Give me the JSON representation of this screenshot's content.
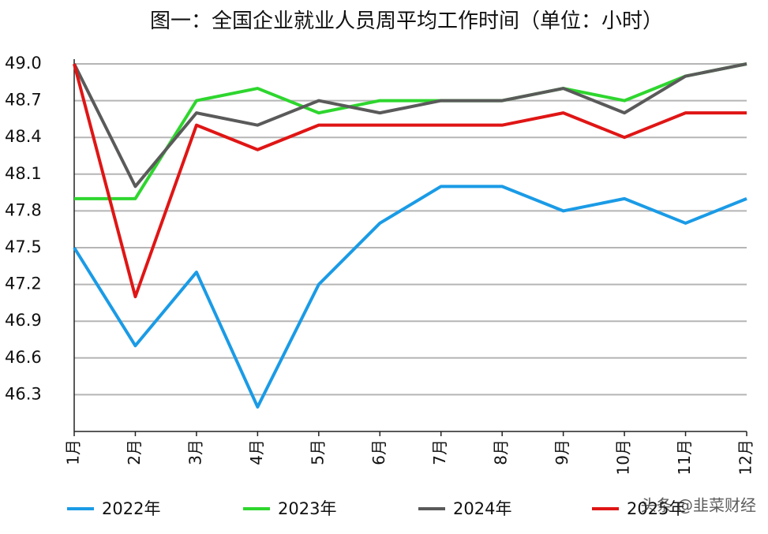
{
  "chart_data": {
    "type": "line",
    "title": "图一：全国企业就业人员周平均工作时间（单位：小时）",
    "categories": [
      "1月",
      "2月",
      "3月",
      "4月",
      "5月",
      "6月",
      "7月",
      "8月",
      "9月",
      "10月",
      "11月",
      "12月"
    ],
    "series": [
      {
        "name": "2022年",
        "color": "#1a9be6",
        "values": [
          47.5,
          46.7,
          47.3,
          46.2,
          47.2,
          47.7,
          48.0,
          48.0,
          47.8,
          47.9,
          47.7,
          47.9
        ]
      },
      {
        "name": "2023年",
        "color": "#2ed62e",
        "values": [
          47.9,
          47.9,
          48.7,
          48.8,
          48.6,
          48.7,
          48.7,
          48.7,
          48.8,
          48.7,
          48.9,
          49.0
        ]
      },
      {
        "name": "2024年",
        "color": "#5a5a5a",
        "values": [
          49.0,
          48.0,
          48.6,
          48.5,
          48.7,
          48.6,
          48.7,
          48.7,
          48.8,
          48.6,
          48.9,
          49.0
        ]
      },
      {
        "name": "2025年",
        "color": "#e01515",
        "values": [
          49.0,
          47.1,
          48.5,
          48.3,
          48.5,
          48.5,
          48.5,
          48.5,
          48.6,
          48.4,
          48.6,
          48.6
        ]
      }
    ],
    "ylim": [
      46.0,
      49.0
    ],
    "yticks": [
      46.3,
      46.6,
      46.9,
      47.2,
      47.5,
      47.8,
      48.1,
      48.4,
      48.7,
      {
        "value": 49.0,
        "label": "49.0"
      }
    ],
    "grid": true,
    "legend": "bottom",
    "watermark": "头条 @韭菜财经"
  }
}
